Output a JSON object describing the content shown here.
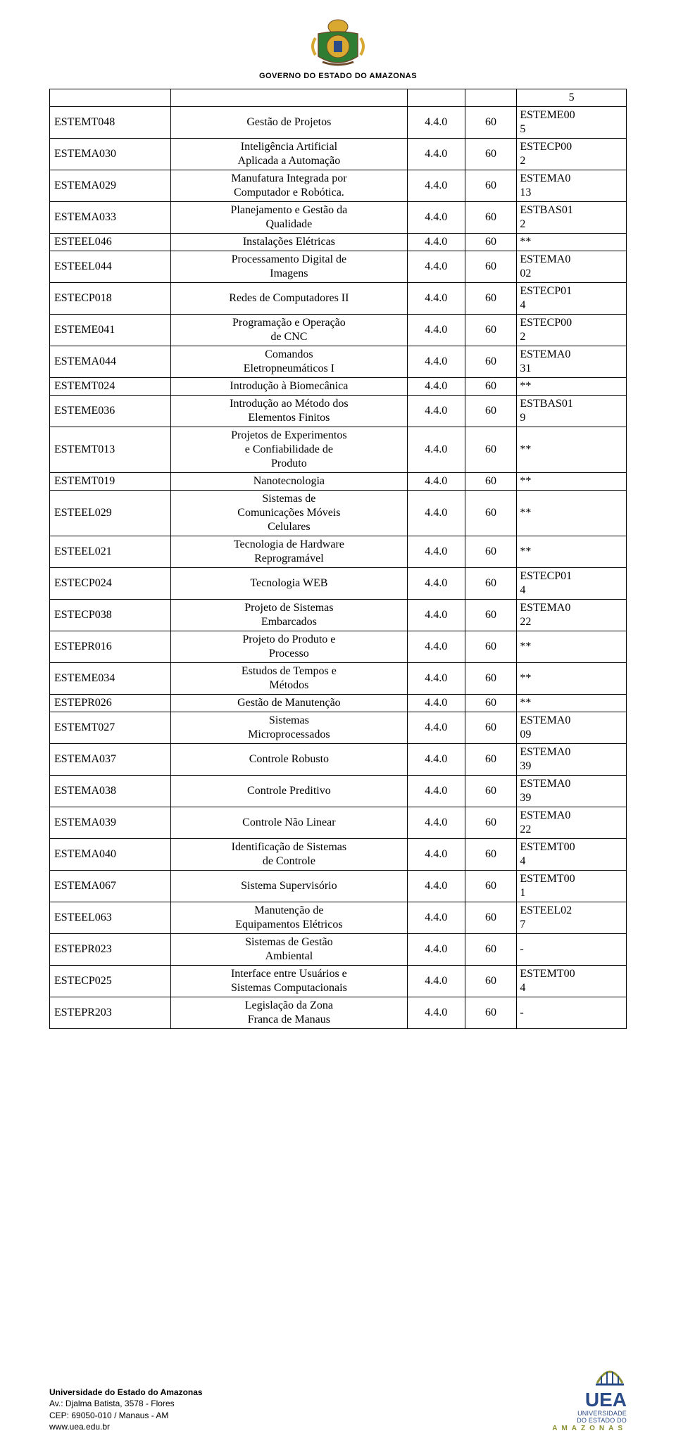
{
  "header": {
    "text": "GOVERNO DO ESTADO DO AMAZONAS",
    "crest_colors": {
      "gold": "#d9a830",
      "green": "#2e7d32",
      "brown": "#6b4a2a",
      "blue": "#2a4b87"
    }
  },
  "table": {
    "upper_right_cell": "5",
    "rows": [
      {
        "code": "ESTEMT048",
        "name": "Gestão de Projetos",
        "ver": "4.4.0",
        "hrs": "60",
        "pre": "ESTEME00\n5"
      },
      {
        "code": "ESTEMA030",
        "name": "Inteligência Artificial\nAplicada a Automação",
        "ver": "4.4.0",
        "hrs": "60",
        "pre": "ESTECP00\n2"
      },
      {
        "code": "ESTEMA029",
        "name": "Manufatura Integrada por\nComputador e Robótica.",
        "ver": "4.4.0",
        "hrs": "60",
        "pre": "ESTEMA0\n13"
      },
      {
        "code": "ESTEMA033",
        "name": "Planejamento e Gestão da\nQualidade",
        "ver": "4.4.0",
        "hrs": "60",
        "pre": "ESTBAS01\n2"
      },
      {
        "code": "ESTEEL046",
        "name": "Instalações Elétricas",
        "ver": "4.4.0",
        "hrs": "60",
        "pre": "**",
        "pre_center": true
      },
      {
        "code": "ESTEEL044",
        "name": "Processamento Digital de\nImagens",
        "ver": "4.4.0",
        "hrs": "60",
        "pre": "ESTEMA0\n02"
      },
      {
        "code": "ESTECP018",
        "name": "Redes de Computadores II",
        "ver": "4.4.0",
        "hrs": "60",
        "pre": "ESTECP01\n4"
      },
      {
        "code": "ESTEME041",
        "name": "Programação e Operação\nde CNC",
        "ver": "4.4.0",
        "hrs": "60",
        "pre": "ESTECP00\n2"
      },
      {
        "code": "ESTEMA044",
        "name": "Comandos\nEletropneumáticos I",
        "ver": "4.4.0",
        "hrs": "60",
        "pre": "ESTEMA0\n31"
      },
      {
        "code": "ESTEMT024",
        "name": "Introdução à Biomecânica",
        "ver": "4.4.0",
        "hrs": "60",
        "pre": "**",
        "pre_center": true
      },
      {
        "code": "ESTEME036",
        "name": "Introdução ao Método dos\nElementos Finitos",
        "ver": "4.4.0",
        "hrs": "60",
        "pre": "ESTBAS01\n9"
      },
      {
        "code": "ESTEMT013",
        "name": "Projetos de Experimentos\ne Confiabilidade de\nProduto",
        "ver": "4.4.0",
        "hrs": "60",
        "pre": "**",
        "pre_center": true
      },
      {
        "code": "ESTEMT019",
        "name": "Nanotecnologia",
        "ver": "4.4.0",
        "hrs": "60",
        "pre": "**",
        "pre_center": true
      },
      {
        "code": "ESTEEL029",
        "name": "Sistemas de\nComunicações Móveis\nCelulares",
        "ver": "4.4.0",
        "hrs": "60",
        "pre": "**",
        "pre_center": true
      },
      {
        "code": "ESTEEL021",
        "name": "Tecnologia de Hardware\nReprogramável",
        "ver": "4.4.0",
        "hrs": "60",
        "pre": "**",
        "pre_center": true
      },
      {
        "code": "ESTECP024",
        "name": "Tecnologia WEB",
        "ver": "4.4.0",
        "hrs": "60",
        "pre": "ESTECP01\n4"
      },
      {
        "code": "ESTECP038",
        "name": "Projeto de Sistemas\nEmbarcados",
        "ver": "4.4.0",
        "hrs": "60",
        "pre": "ESTEMA0\n22"
      },
      {
        "code": "ESTEPR016",
        "name": "Projeto do Produto e\nProcesso",
        "ver": "4.4.0",
        "hrs": "60",
        "pre": "**",
        "pre_center": true
      },
      {
        "code": "ESTEME034",
        "name": "Estudos de Tempos e\nMétodos",
        "ver": "4.4.0",
        "hrs": "60",
        "pre": "**",
        "pre_center": true
      },
      {
        "code": "ESTEPR026",
        "name": "Gestão de Manutenção",
        "ver": "4.4.0",
        "hrs": "60",
        "pre": "**",
        "pre_center": true
      },
      {
        "code": "ESTEMT027",
        "name": "Sistemas\nMicroprocessados",
        "ver": "4.4.0",
        "hrs": "60",
        "pre": "ESTEMA0\n09"
      },
      {
        "code": "ESTEMA037",
        "name": "Controle Robusto",
        "ver": "4.4.0",
        "hrs": "60",
        "pre": "ESTEMA0\n39"
      },
      {
        "code": "ESTEMA038",
        "name": "Controle Preditivo",
        "ver": "4.4.0",
        "hrs": "60",
        "pre": "ESTEMA0\n39"
      },
      {
        "code": "ESTEMA039",
        "name": "Controle Não Linear",
        "ver": "4.4.0",
        "hrs": "60",
        "pre": "ESTEMA0\n22"
      },
      {
        "code": "ESTEMA040",
        "name": "Identificação de Sistemas\nde Controle",
        "ver": "4.4.0",
        "hrs": "60",
        "pre": "ESTEMT00\n4"
      },
      {
        "code": "ESTEMA067",
        "name": "Sistema Supervisório",
        "ver": "4.4.0",
        "hrs": "60",
        "pre": "ESTEMT00\n1"
      },
      {
        "code": "ESTEEL063",
        "name": "Manutenção de\nEquipamentos Elétricos",
        "ver": "4.4.0",
        "hrs": "60",
        "pre": "ESTEEL02\n7"
      },
      {
        "code": "ESTEPR023",
        "name": "Sistemas de Gestão\nAmbiental",
        "ver": "4.4.0",
        "hrs": "60",
        "pre": "-",
        "pre_center": true
      },
      {
        "code": "ESTECP025",
        "name": "Interface entre Usuários e\nSistemas Computacionais",
        "ver": "4.4.0",
        "hrs": "60",
        "pre": "ESTEMT00\n4"
      },
      {
        "code": "ESTEPR203",
        "name": "Legislação da Zona\nFranca de Manaus",
        "ver": "4.4.0",
        "hrs": "60",
        "pre": "-",
        "pre_center": true
      }
    ]
  },
  "footer": {
    "left": {
      "title": "Universidade do Estado do Amazonas",
      "addr": "Av.: Djalma Batista, 3578 - Flores",
      "cep": "CEP: 69050-010 / Manaus - AM",
      "site": "www.uea.edu.br"
    },
    "right": {
      "big": "UEA",
      "line1": "UNIVERSIDADE",
      "line2": "DO ESTADO DO",
      "line3": "AMAZONAS"
    }
  }
}
